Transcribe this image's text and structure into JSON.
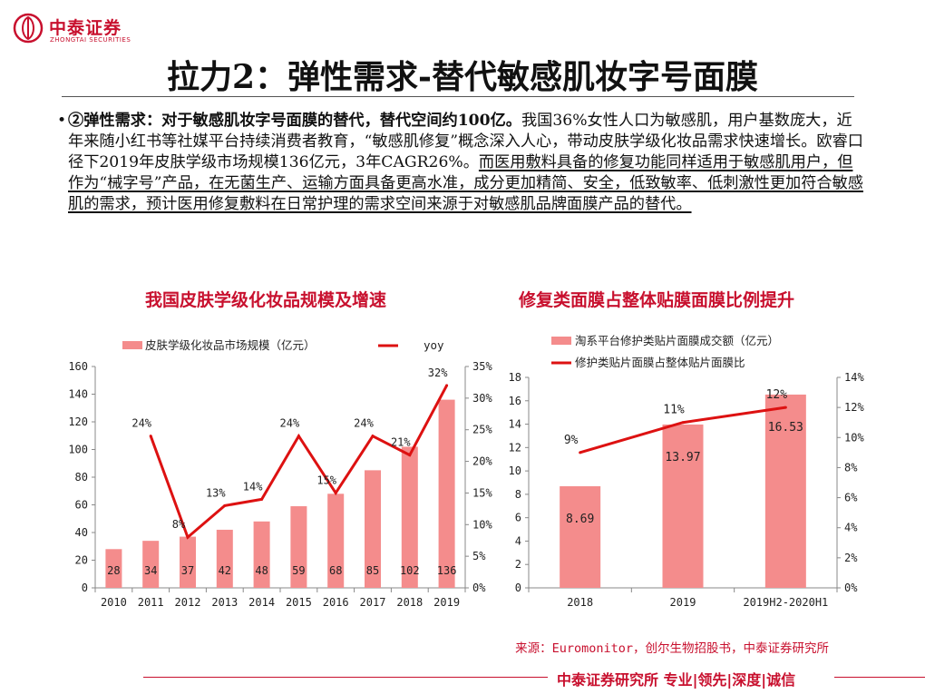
{
  "brand": {
    "name_cn": "中泰证券",
    "name_en": "ZHONGTAI SECURITIES"
  },
  "title": "拉力2：弹性需求-替代敏感肌妆字号面膜",
  "body": {
    "lead": "②弹性需求：对于敏感肌妆字号面膜的替代，替代空间约100亿。",
    "text": "我国36%女性人口为敏感肌，用户基数庞大，近年来随小红书等社媒平台持续消费者教育，“敏感肌修复”概念深入人心，带动皮肤学级化妆品需求快速增长。欧睿口径下2019年皮肤学级市场规模136亿元，3年CAGR26%。",
    "underlined": "而医用敷料具备的修复功能同样适用于敏感肌用户，但作为“械字号”产品，在无菌生产、运输方面具备更高水准，成分更加精简、安全，低致敏率、低刺激性更加符合敏感肌的需求，预计医用修复敷料在日常护理的需求空间来源于对敏感肌品牌面膜产品的替代。"
  },
  "colors": {
    "bar": "#f48c8c",
    "line": "#dd1111",
    "accent": "#c8102e"
  },
  "chart_data": [
    {
      "type": "bar",
      "title": "我国皮肤学级化妆品规模及增速",
      "categories": [
        "2010",
        "2011",
        "2012",
        "2013",
        "2014",
        "2015",
        "2016",
        "2017",
        "2018",
        "2019"
      ],
      "series": [
        {
          "name": "皮肤学级化妆品市场规模（亿元）",
          "kind": "bar",
          "axis": "left",
          "values": [
            28,
            34,
            37,
            42,
            48,
            59,
            68,
            85,
            102,
            136
          ],
          "labels": [
            "28",
            "34",
            "37",
            "42",
            "48",
            "59",
            "68",
            "85",
            "102",
            "136"
          ]
        },
        {
          "name": "yoy",
          "kind": "line",
          "axis": "right",
          "values": [
            null,
            24,
            8,
            13,
            14,
            24,
            15,
            24,
            21,
            32
          ],
          "labels": [
            "",
            "24%",
            "8%",
            "13%",
            "14%",
            "24%",
            "15%",
            "24%",
            "21%",
            "32%"
          ]
        }
      ],
      "y_left": {
        "min": 0,
        "max": 160,
        "ticks": [
          "0",
          "20",
          "40",
          "60",
          "80",
          "100",
          "120",
          "140",
          "160"
        ]
      },
      "y_right": {
        "min": 0,
        "max": 35,
        "ticks": [
          "0%",
          "5%",
          "10%",
          "15%",
          "20%",
          "25%",
          "30%",
          "35%"
        ]
      },
      "legend": "top"
    },
    {
      "type": "bar",
      "title": "修复类面膜占整体贴膜面膜比例提升",
      "categories": [
        "2018",
        "2019",
        "2019H2-2020H1"
      ],
      "series": [
        {
          "name": "淘系平台修护类贴片面膜成交额（亿元）",
          "kind": "bar",
          "axis": "left",
          "values": [
            8.69,
            13.97,
            16.53
          ],
          "labels": [
            "8.69",
            "13.97",
            "16.53"
          ]
        },
        {
          "name": "修护类贴片面膜占整体贴片面膜比",
          "kind": "line",
          "axis": "right",
          "values": [
            9,
            11,
            12
          ],
          "labels": [
            "9%",
            "11%",
            "12%"
          ]
        }
      ],
      "y_left": {
        "min": 0,
        "max": 18,
        "ticks": [
          "0",
          "2",
          "4",
          "6",
          "8",
          "10",
          "12",
          "14",
          "16",
          "18"
        ]
      },
      "y_right": {
        "min": 0,
        "max": 14,
        "ticks": [
          "0%",
          "2%",
          "4%",
          "6%",
          "8%",
          "10%",
          "12%",
          "14%"
        ]
      },
      "legend": "top"
    }
  ],
  "source": "来源：Euromonitor，创尔生物招股书，中泰证券研究所",
  "footer": "中泰证券研究所 专业|领先|深度|诚信"
}
